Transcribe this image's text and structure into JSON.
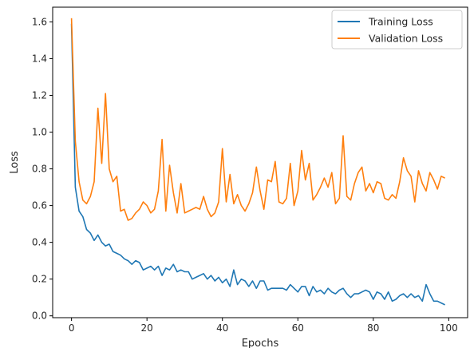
{
  "chart_data": {
    "type": "line",
    "xlabel": "Epochs",
    "ylabel": "Loss",
    "xlim": [
      -5,
      105
    ],
    "ylim": [
      -0.01,
      1.68
    ],
    "xticks": [
      0,
      20,
      40,
      60,
      80,
      100
    ],
    "yticks": [
      0.0,
      0.2,
      0.4,
      0.6,
      0.8,
      1.0,
      1.2,
      1.4,
      1.6
    ],
    "grid": false,
    "legend_position": "top-right",
    "series": [
      {
        "name": "Training Loss",
        "color": "#1f77b4",
        "x": [
          0,
          1,
          2,
          3,
          4,
          5,
          6,
          7,
          8,
          9,
          10,
          11,
          12,
          13,
          14,
          15,
          16,
          17,
          18,
          19,
          20,
          21,
          22,
          23,
          24,
          25,
          26,
          27,
          28,
          29,
          30,
          31,
          32,
          33,
          34,
          35,
          36,
          37,
          38,
          39,
          40,
          41,
          42,
          43,
          44,
          45,
          46,
          47,
          48,
          49,
          50,
          51,
          52,
          53,
          54,
          55,
          56,
          57,
          58,
          59,
          60,
          61,
          62,
          63,
          64,
          65,
          66,
          67,
          68,
          69,
          70,
          71,
          72,
          73,
          74,
          75,
          76,
          77,
          78,
          79,
          80,
          81,
          82,
          83,
          84,
          85,
          86,
          87,
          88,
          89,
          90,
          91,
          92,
          93,
          94,
          95,
          96,
          97,
          98,
          99
        ],
        "values": [
          1.59,
          0.7,
          0.57,
          0.54,
          0.47,
          0.45,
          0.41,
          0.44,
          0.4,
          0.38,
          0.39,
          0.35,
          0.34,
          0.33,
          0.31,
          0.3,
          0.28,
          0.3,
          0.29,
          0.25,
          0.26,
          0.27,
          0.25,
          0.27,
          0.22,
          0.26,
          0.25,
          0.28,
          0.24,
          0.25,
          0.24,
          0.24,
          0.2,
          0.21,
          0.22,
          0.23,
          0.2,
          0.22,
          0.19,
          0.21,
          0.18,
          0.2,
          0.16,
          0.25,
          0.17,
          0.2,
          0.19,
          0.16,
          0.19,
          0.15,
          0.19,
          0.19,
          0.14,
          0.15,
          0.15,
          0.15,
          0.15,
          0.14,
          0.17,
          0.15,
          0.13,
          0.16,
          0.16,
          0.11,
          0.16,
          0.13,
          0.14,
          0.12,
          0.15,
          0.13,
          0.12,
          0.14,
          0.15,
          0.12,
          0.1,
          0.12,
          0.12,
          0.13,
          0.14,
          0.13,
          0.09,
          0.13,
          0.12,
          0.09,
          0.13,
          0.08,
          0.09,
          0.11,
          0.12,
          0.1,
          0.12,
          0.1,
          0.11,
          0.08,
          0.17,
          0.12,
          0.08,
          0.08,
          0.07,
          0.06
        ]
      },
      {
        "name": "Validation Loss",
        "color": "#ff7f0e",
        "x": [
          0,
          1,
          2,
          3,
          4,
          5,
          6,
          7,
          8,
          9,
          10,
          11,
          12,
          13,
          14,
          15,
          16,
          17,
          18,
          19,
          20,
          21,
          22,
          23,
          24,
          25,
          26,
          27,
          28,
          29,
          30,
          31,
          32,
          33,
          34,
          35,
          36,
          37,
          38,
          39,
          40,
          41,
          42,
          43,
          44,
          45,
          46,
          47,
          48,
          49,
          50,
          51,
          52,
          53,
          54,
          55,
          56,
          57,
          58,
          59,
          60,
          61,
          62,
          63,
          64,
          65,
          66,
          67,
          68,
          69,
          70,
          71,
          72,
          73,
          74,
          75,
          76,
          77,
          78,
          79,
          80,
          81,
          82,
          83,
          84,
          85,
          86,
          87,
          88,
          89,
          90,
          91,
          92,
          93,
          94,
          95,
          96,
          97,
          98,
          99
        ],
        "values": [
          1.62,
          0.95,
          0.73,
          0.63,
          0.61,
          0.65,
          0.73,
          1.13,
          0.83,
          1.21,
          0.8,
          0.73,
          0.76,
          0.57,
          0.58,
          0.52,
          0.53,
          0.56,
          0.58,
          0.62,
          0.6,
          0.56,
          0.58,
          0.68,
          0.96,
          0.57,
          0.82,
          0.67,
          0.56,
          0.72,
          0.56,
          0.57,
          0.58,
          0.59,
          0.58,
          0.65,
          0.58,
          0.54,
          0.56,
          0.62,
          0.91,
          0.62,
          0.77,
          0.61,
          0.66,
          0.6,
          0.57,
          0.61,
          0.67,
          0.81,
          0.68,
          0.58,
          0.74,
          0.73,
          0.84,
          0.62,
          0.61,
          0.64,
          0.83,
          0.6,
          0.68,
          0.9,
          0.74,
          0.83,
          0.63,
          0.66,
          0.7,
          0.75,
          0.7,
          0.78,
          0.61,
          0.64,
          0.98,
          0.65,
          0.63,
          0.72,
          0.78,
          0.81,
          0.68,
          0.72,
          0.67,
          0.73,
          0.72,
          0.64,
          0.63,
          0.66,
          0.64,
          0.73,
          0.86,
          0.79,
          0.76,
          0.62,
          0.79,
          0.72,
          0.68,
          0.78,
          0.74,
          0.69,
          0.76,
          0.75
        ]
      }
    ]
  }
}
